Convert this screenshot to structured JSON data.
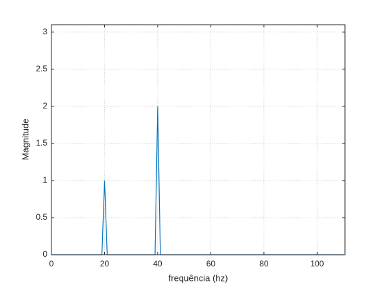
{
  "chart_data": {
    "type": "line",
    "xlabel": "frequência (hz)",
    "ylabel": "Magnitude",
    "x": [
      0,
      19,
      20,
      21,
      39,
      40,
      41,
      110
    ],
    "series": [
      {
        "color": "#0072bd",
        "values": [
          0,
          0,
          1,
          0,
          0,
          2,
          0,
          0
        ]
      }
    ],
    "xlim": [
      0,
      110.5
    ],
    "ylim": [
      0,
      3.1
    ],
    "xticks": [
      0,
      20,
      40,
      60,
      80,
      100
    ],
    "yticks": [
      0,
      0.5,
      1,
      1.5,
      2,
      2.5,
      3
    ],
    "grid": true
  }
}
